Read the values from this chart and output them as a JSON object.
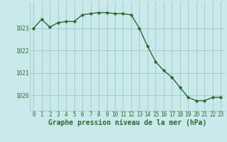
{
  "x": [
    0,
    1,
    2,
    3,
    4,
    5,
    6,
    7,
    8,
    9,
    10,
    11,
    12,
    13,
    14,
    15,
    16,
    17,
    18,
    19,
    20,
    21,
    22,
    23
  ],
  "y": [
    1023.0,
    1023.4,
    1023.05,
    1023.25,
    1023.3,
    1023.3,
    1023.6,
    1023.65,
    1023.7,
    1023.7,
    1023.65,
    1023.65,
    1023.6,
    1023.0,
    1022.2,
    1021.5,
    1021.1,
    1020.8,
    1020.35,
    1019.9,
    1019.75,
    1019.75,
    1019.9,
    1019.9
  ],
  "line_color": "#2d6a2d",
  "marker": "D",
  "markersize": 2.2,
  "bg_color": "#c8eaea",
  "grid_color": "#a0c8c8",
  "xlabel": "Graphe pression niveau de la mer (hPa)",
  "xlabel_fontsize": 7,
  "ylabel_ticks": [
    1020,
    1021,
    1022,
    1023
  ],
  "ylim": [
    1019.3,
    1024.2
  ],
  "xlim": [
    -0.5,
    23.5
  ],
  "xticks": [
    0,
    1,
    2,
    3,
    4,
    5,
    6,
    7,
    8,
    9,
    10,
    11,
    12,
    13,
    14,
    15,
    16,
    17,
    18,
    19,
    20,
    21,
    22,
    23
  ],
  "tick_fontsize": 5.5,
  "tick_color": "#2d6a2d",
  "linewidth": 1.0
}
